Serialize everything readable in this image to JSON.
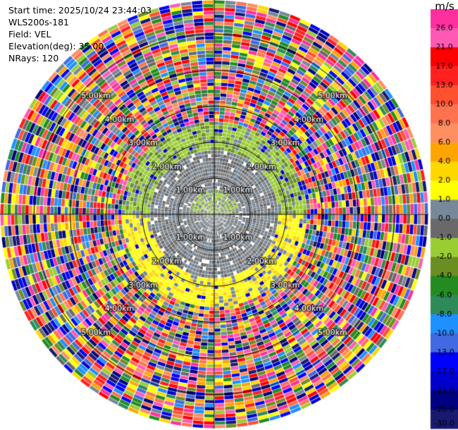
{
  "info": {
    "start_time": "Start time: 2025/10/24 23:44:03",
    "instrument": "WLS200s-181",
    "field": "Field: VEL",
    "elevation": "Elevation(deg): 35.00",
    "nrays": "NRays: 120"
  },
  "colorbar": {
    "unit": "m/s",
    "ticks": [
      "26.0",
      "21.0",
      "17.0",
      "13.0",
      "10.0",
      "8.0",
      "6.0",
      "4.0",
      "2.0",
      "1.0",
      "0.0",
      "-1.0",
      "-2.0",
      "-4.0",
      "-6.0",
      "-8.0",
      "-10.0",
      "-13.0",
      "-17.0",
      "-21.0",
      "-26.0",
      "-30.0"
    ],
    "colors": [
      "#ff2fa0",
      "#ff59b4",
      "#ff0000",
      "#ff2020",
      "#ff5030",
      "#ff7250",
      "#ff8f60",
      "#ffa500",
      "#ffd700",
      "#ffff00",
      "#778899",
      "#696969",
      "#9acd32",
      "#6b8e23",
      "#228b22",
      "#2e8b57",
      "#1e90ff",
      "#4169e1",
      "#0000ff",
      "#0000cd",
      "#000080",
      "#191970"
    ]
  },
  "chart_data": {
    "type": "ppi",
    "field": "VEL",
    "units": "m/s",
    "nrays": 120,
    "elevation_deg": 35.0,
    "max_range_km": 5.0,
    "range_ring_labels": [
      "1.00km",
      "2.00km",
      "3.00km",
      "4.00km",
      "5.00km"
    ],
    "regimes": [
      {
        "range_km": [
          0.0,
          1.5
        ],
        "pattern": "grey, near-zero velocity (-1.0 to 1.0 m/s)"
      },
      {
        "range_km": [
          1.5,
          2.2
        ],
        "pattern": "ring: green (-1 to -4 m/s) on the north side, yellow (1 to 4 m/s) on the south side"
      },
      {
        "range_km": [
          2.2,
          5.0
        ],
        "pattern": "noisy, full range of colors (-30 to 26 m/s)"
      }
    ]
  }
}
